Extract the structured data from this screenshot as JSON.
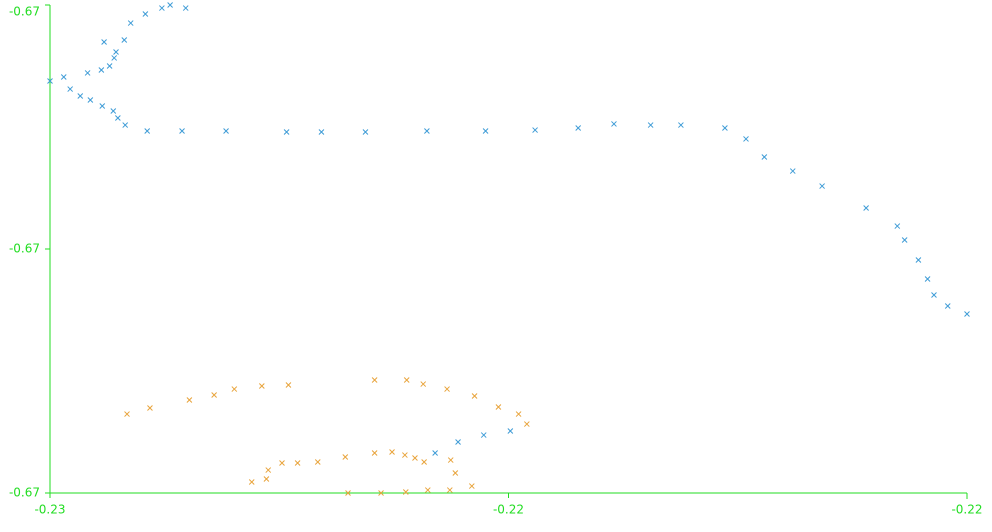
{
  "chart_data": {
    "type": "scatter",
    "xlim": [
      -0.228,
      -0.218
    ],
    "xticks": [
      {
        "value": -0.228,
        "label": "-0.23"
      },
      {
        "value": -0.223,
        "label": "-0.22"
      },
      {
        "value": -0.218,
        "label": "-0.22"
      }
    ],
    "ylim": [
      -0.672,
      -0.668
    ],
    "yticks": [
      {
        "value": -0.672,
        "label": "-0.67"
      },
      {
        "value": -0.67,
        "label": "-0.67"
      },
      {
        "value": -0.668,
        "label": "-0.67"
      }
    ],
    "axis_color": "#22dd22",
    "series": [
      {
        "color": "#3d9bd6",
        "x": [
          -0.228,
          -0.22785,
          -0.22778,
          -0.22767,
          -0.22759,
          -0.22756,
          -0.22744,
          -0.22743,
          -0.22731,
          -0.22726,
          -0.22718,
          -0.22741,
          -0.22728,
          -0.2273,
          -0.22735,
          -0.22719,
          -0.22712,
          -0.22696,
          -0.22678,
          -0.22669,
          -0.22652,
          -0.22694,
          -0.22656,
          -0.22608,
          -0.22542,
          -0.22504,
          -0.22456,
          -0.22389,
          -0.22325,
          -0.22271,
          -0.22224,
          -0.22185,
          -0.22145,
          -0.22112,
          -0.22064,
          -0.22041,
          -0.22021,
          -0.2199,
          -0.21958,
          -0.2191,
          -0.21876,
          -0.21868,
          -0.21853,
          -0.21843,
          -0.21836,
          -0.21821,
          -0.218,
          -0.2238,
          -0.22355,
          -0.22327,
          -0.22298
        ],
        "values": [
          -0.668623,
          -0.66859,
          -0.668689,
          -0.668746,
          -0.668557,
          -0.668779,
          -0.668533,
          -0.668828,
          -0.668869,
          -0.668926,
          -0.668984,
          -0.668303,
          -0.668385,
          -0.668434,
          -0.6685,
          -0.668287,
          -0.668148,
          -0.668074,
          -0.668025,
          -0.668,
          -0.668025,
          -0.669033,
          -0.669033,
          -0.669033,
          -0.669041,
          -0.669041,
          -0.669041,
          -0.669033,
          -0.669033,
          -0.669025,
          -0.669008,
          -0.668975,
          -0.668984,
          -0.668984,
          -0.669008,
          -0.669098,
          -0.669246,
          -0.669361,
          -0.669484,
          -0.669664,
          -0.669812,
          -0.669926,
          -0.67009,
          -0.670246,
          -0.670377,
          -0.670467,
          -0.670533,
          -0.671672,
          -0.671582,
          -0.671525,
          -0.671492
        ]
      },
      {
        "color": "#e8a33a",
        "x": [
          -0.22716,
          -0.22691,
          -0.22648,
          -0.22621,
          -0.22599,
          -0.22569,
          -0.2254,
          -0.22446,
          -0.22411,
          -0.22393,
          -0.22367,
          -0.22337,
          -0.22311,
          -0.22289,
          -0.2228,
          -0.2258,
          -0.22564,
          -0.22562,
          -0.22547,
          -0.2253,
          -0.22508,
          -0.22478,
          -0.22446,
          -0.22427,
          -0.22413,
          -0.22402,
          -0.22392,
          -0.22363,
          -0.22358,
          -0.2234,
          -0.22364,
          -0.22388,
          -0.22412,
          -0.22439,
          -0.22475
        ],
        "values": [
          -0.671353,
          -0.671303,
          -0.671238,
          -0.671197,
          -0.671148,
          -0.671123,
          -0.671115,
          -0.671074,
          -0.671074,
          -0.671107,
          -0.671148,
          -0.671205,
          -0.671295,
          -0.671353,
          -0.671435,
          -0.67191,
          -0.671885,
          -0.671812,
          -0.671754,
          -0.671754,
          -0.671746,
          -0.671705,
          -0.671672,
          -0.671664,
          -0.671689,
          -0.671713,
          -0.671746,
          -0.67173,
          -0.671836,
          -0.671943,
          -0.671976,
          -0.671976,
          -0.671992,
          -0.672,
          -0.672
        ]
      }
    ]
  }
}
